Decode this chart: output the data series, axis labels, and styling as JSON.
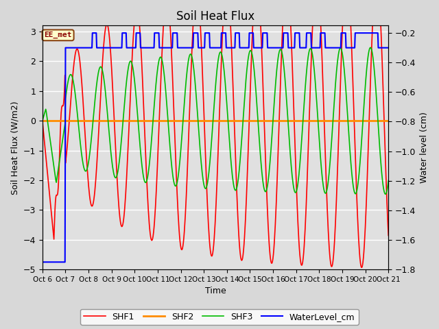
{
  "title": "Soil Heat Flux",
  "ylabel_left": "Soil Heat Flux (W/m2)",
  "ylabel_right": "Water level (cm)",
  "xlabel": "Time",
  "ylim_left": [
    -5.0,
    3.2
  ],
  "ylim_right": [
    -1.8,
    -0.15
  ],
  "annotation_text": "EE_met",
  "annotation_color": "#8B0000",
  "annotation_bg": "#ffffcc",
  "annotation_border": "#8B4513",
  "series_colors": {
    "SHF1": "#ff0000",
    "SHF2": "#ff8c00",
    "SHF3": "#00bb00",
    "WaterLevel": "#0000ff"
  },
  "x_tick_labels": [
    "Oct 6",
    "Oct 7",
    "Oct 8",
    "Oct 9",
    "Oct 10",
    "Oct 11",
    "Oct 12",
    "Oct 13",
    "Oct 14",
    "Oct 15",
    "Oct 16",
    "Oct 17",
    "Oct 18",
    "Oct 19",
    "Oct 20",
    "Oct 21"
  ],
  "yticks_left": [
    -5.0,
    -4.0,
    -3.0,
    -2.0,
    -1.0,
    0.0,
    1.0,
    2.0,
    3.0
  ],
  "yticks_right": [
    -1.8,
    -1.6,
    -1.4,
    -1.2,
    -1.0,
    -0.8,
    -0.6,
    -0.4,
    -0.2
  ],
  "bg_color": "#d8d8d8",
  "plot_bg": "#e0e0e0"
}
